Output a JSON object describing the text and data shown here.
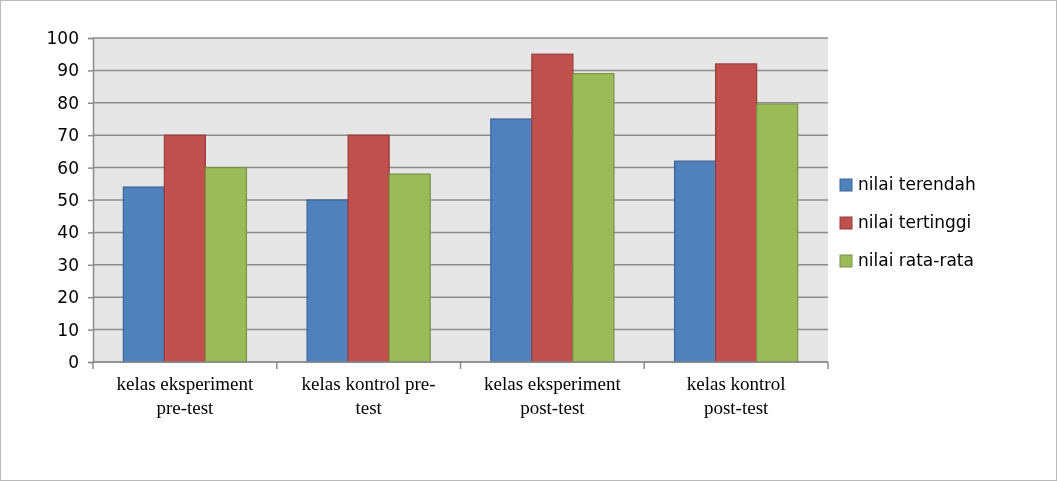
{
  "chart_data": {
    "type": "bar",
    "categories": [
      "kelas eksperiment pre-test",
      "kelas kontrol pre-test",
      "kelas eksperiment post-test",
      "kelas kontrol post-test"
    ],
    "series": [
      {
        "name": "nilai terendah",
        "color": "#4f81bd",
        "values": [
          54,
          50,
          75,
          62
        ]
      },
      {
        "name": "nilai tertinggi",
        "color": "#c0504d",
        "values": [
          70,
          70,
          95,
          92
        ]
      },
      {
        "name": "nilai rata-rata",
        "color": "#9bbb59",
        "values": [
          60,
          58,
          89,
          79.6
        ]
      }
    ],
    "ylim": [
      0,
      100
    ],
    "yticks": [
      0,
      10,
      20,
      30,
      40,
      50,
      60,
      70,
      80,
      90,
      100
    ],
    "grid": "y",
    "legend": "right"
  }
}
